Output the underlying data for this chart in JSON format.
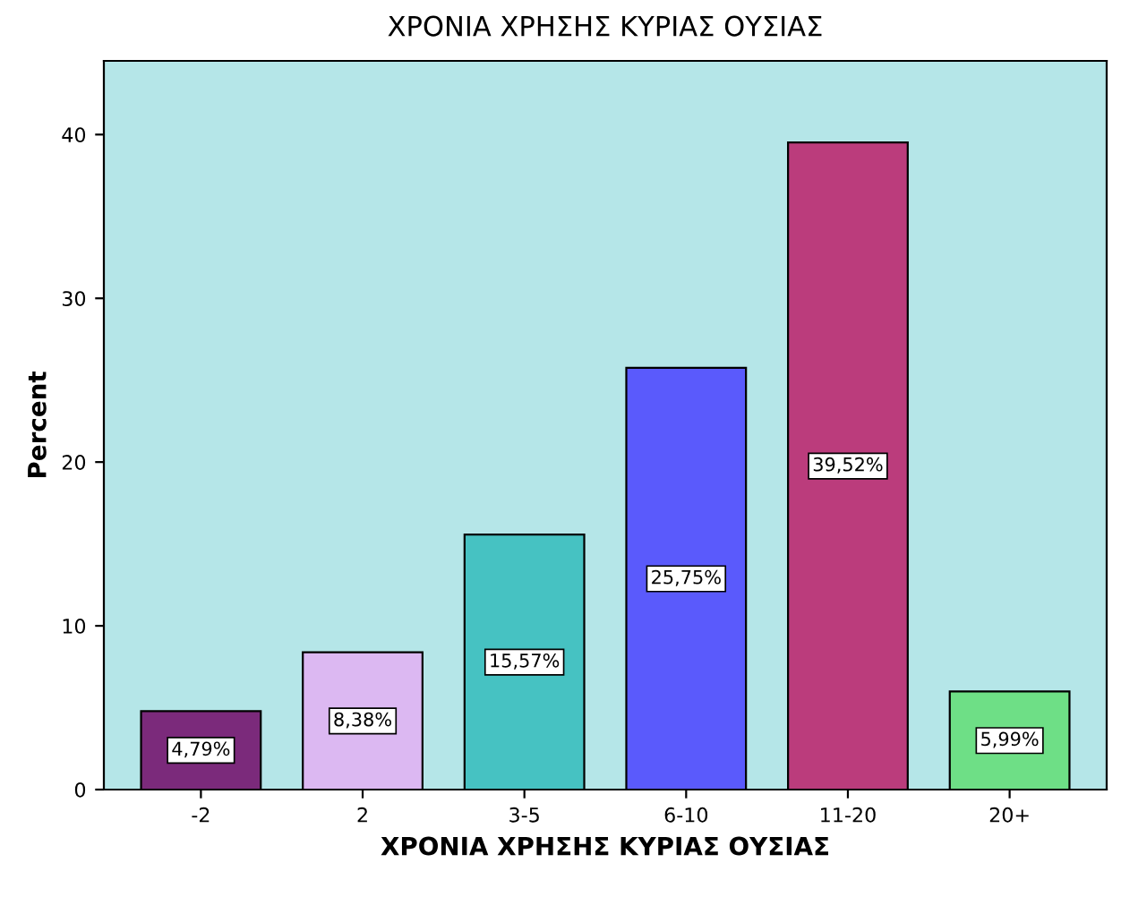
{
  "chart_data": {
    "type": "bar",
    "title": "ΧΡΟΝΙΑ ΧΡΗΣΗΣ ΚΥΡΙΑΣ ΟΥΣΙΑΣ",
    "xlabel": "ΧΡΟΝΙΑ ΧΡΗΣΗΣ ΚΥΡΙΑΣ ΟΥΣΙΑΣ",
    "ylabel": "Percent",
    "categories": [
      "-2",
      "2",
      "3-5",
      "6-10",
      "11-20",
      "20+"
    ],
    "values": [
      4.79,
      8.38,
      15.57,
      25.75,
      39.52,
      5.99
    ],
    "colors": [
      "#7b2a7b",
      "#dcb8f2",
      "#46c2c2",
      "#5a5afc",
      "#bb3c7c",
      "#6edf86"
    ],
    "value_labels": [
      "4,79%",
      "8,38%",
      "15,57%",
      "25,75%",
      "39,52%",
      "5,99%"
    ],
    "ylim": [
      0,
      44.5
    ],
    "yticks": [
      0,
      10,
      20,
      30,
      40
    ],
    "grid": false,
    "legend": false
  }
}
